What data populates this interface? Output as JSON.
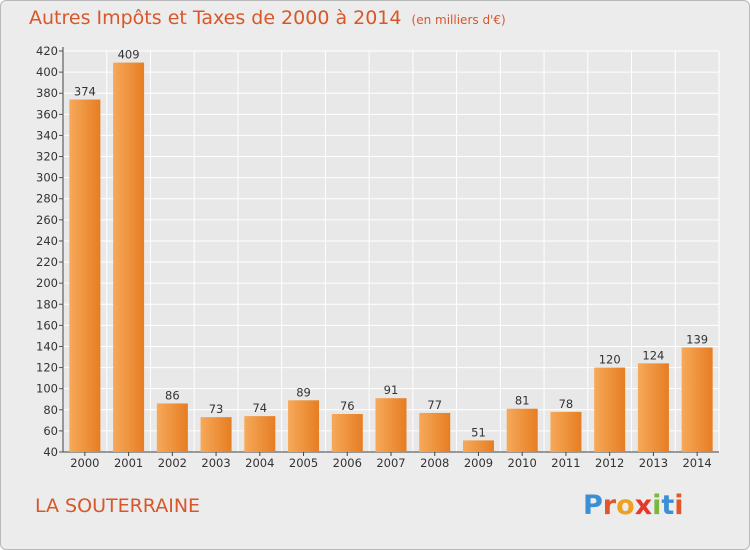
{
  "header": {
    "title": "Autres Impôts et Taxes de 2000 à 2014",
    "unit": "(en milliers d'€)"
  },
  "footer": {
    "city": "LA SOUTERRAINE",
    "logo": "Proxiti"
  },
  "colors": {
    "title": "#d7572a",
    "bar_light": "#f6a95a",
    "bar_dark": "#e67d22",
    "background": "#ececec",
    "grid": "#ffffff"
  },
  "chart_data": {
    "type": "bar",
    "title": "Autres Impôts et Taxes de 2000 à 2014",
    "subtitle": "(en milliers d'€)",
    "xlabel": "",
    "ylabel": "",
    "categories": [
      "2000",
      "2001",
      "2002",
      "2003",
      "2004",
      "2005",
      "2006",
      "2007",
      "2008",
      "2009",
      "2010",
      "2011",
      "2012",
      "2013",
      "2014"
    ],
    "values": [
      374,
      409,
      86,
      73,
      74,
      89,
      76,
      91,
      77,
      51,
      81,
      78,
      120,
      124,
      139
    ],
    "ylim": [
      40,
      420
    ],
    "yticks": [
      40,
      60,
      80,
      100,
      120,
      140,
      160,
      180,
      200,
      220,
      240,
      260,
      280,
      300,
      320,
      340,
      360,
      380,
      400,
      420
    ],
    "grid": true,
    "data_labels": true
  }
}
